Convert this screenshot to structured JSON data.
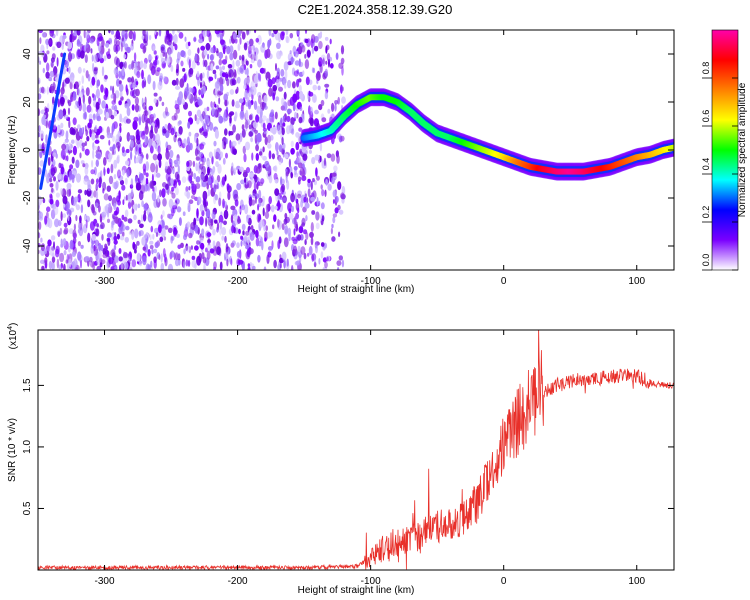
{
  "title": "C2E1.2024.358.12.39.G20",
  "chart_data": [
    {
      "type": "heatmap",
      "xlabel": "Height of straight line (km)",
      "ylabel": "Frequency (Hz)",
      "xlim": [
        -350,
        128
      ],
      "ylim": [
        -50,
        50
      ],
      "xticks": [
        -300,
        -200,
        -100,
        0,
        100
      ],
      "yticks": [
        -40,
        -20,
        0,
        20,
        40
      ],
      "colorbar": {
        "label": "Normalized spectral amplitude",
        "range": [
          0,
          1
        ],
        "ticks": [
          "0.0",
          "0.2",
          "0.4",
          "0.6",
          "0.8"
        ],
        "colormap": [
          "#ffffff",
          "#7a00ff",
          "#0000ff",
          "#00ffff",
          "#00ff00",
          "#ffff00",
          "#ff8000",
          "#ff0000",
          "#ff00aa"
        ]
      },
      "noise_region_x": [
        -350,
        -120
      ],
      "lines": [
        {
          "x": [
            -348,
            -330
          ],
          "y": [
            -16,
            40
          ],
          "color": "#0a3cff",
          "amplitude": 0.25
        },
        {
          "x": [
            -150,
            -140,
            -130,
            -120,
            -110,
            -100,
            -90,
            -80,
            -70,
            -60,
            -50,
            -40,
            -30,
            -20,
            -10,
            0,
            10,
            20,
            30,
            40,
            50,
            60,
            70,
            80,
            90,
            100,
            110,
            120,
            128
          ],
          "y": [
            5,
            6,
            8,
            14,
            19,
            22,
            22,
            20,
            16,
            11,
            7,
            5,
            3,
            1,
            -1,
            -3,
            -5,
            -7,
            -8,
            -9,
            -9,
            -9,
            -8,
            -7,
            -5,
            -3,
            -2,
            0,
            1
          ],
          "amplitude": [
            0.3,
            0.35,
            0.4,
            0.45,
            0.5,
            0.55,
            0.5,
            0.5,
            0.45,
            0.45,
            0.45,
            0.45,
            0.5,
            0.55,
            0.6,
            0.65,
            0.75,
            0.82,
            0.9,
            0.95,
            0.98,
            0.95,
            0.9,
            0.85,
            0.8,
            0.75,
            0.7,
            0.65,
            0.6
          ]
        }
      ]
    },
    {
      "type": "line",
      "xlabel": "Height of straight line (km)",
      "ylabel": "SNR (10 * v/v)",
      "multiplier_label": "(x10",
      "multiplier_exp": "4",
      "xlim": [
        -350,
        128
      ],
      "ylim": [
        0,
        1.95
      ],
      "xticks": [
        -300,
        -200,
        -100,
        0,
        100
      ],
      "yticks": [
        "0.5",
        "1.0",
        "1.5"
      ],
      "color": "#e8302a",
      "series": [
        {
          "x": [
            -350,
            -300,
            -250,
            -200,
            -150,
            -110,
            -100,
            -90,
            -80,
            -70,
            -60,
            -50,
            -40,
            -30,
            -20,
            -10,
            0,
            10,
            20,
            30,
            40,
            50,
            60,
            70,
            80,
            90,
            100,
            110,
            120,
            128
          ],
          "y": [
            0.02,
            0.02,
            0.02,
            0.02,
            0.02,
            0.03,
            0.1,
            0.18,
            0.22,
            0.25,
            0.3,
            0.35,
            0.38,
            0.42,
            0.55,
            0.75,
            1.0,
            1.2,
            1.35,
            1.45,
            1.5,
            1.53,
            1.55,
            1.55,
            1.57,
            1.58,
            1.58,
            1.52,
            1.5,
            1.5
          ]
        }
      ]
    }
  ]
}
